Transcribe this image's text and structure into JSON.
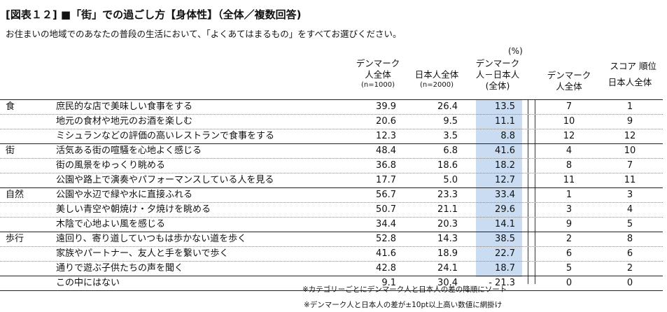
{
  "title": "[図表１２] ■「街」での過ごし方【身体性】（全体／複数回答)",
  "subtitle": "お住まいの地域でのあなたの普段の生活において、「よくあてはまるもの」をすべてお選びください。",
  "unit": "(%)",
  "headers": {
    "col1_line1": "デンマーク",
    "col1_line2": "人全体",
    "col1_n": "(n=1000)",
    "col2_line1": "日本人全体",
    "col2_n": "(n=2000)",
    "col3_line1": "デンマーク",
    "col3_line2": "人－日本人",
    "col3_line3": "(全体)",
    "score_title": "スコア 順位",
    "rank1_line1": "デンマーク",
    "rank1_line2": "人全体",
    "rank2": "日本人全体"
  },
  "rows": [
    {
      "category": "食",
      "item": "庶民的な店で美味しい食事をする",
      "dk": "39.9",
      "jp": "26.4",
      "diff": "13.5",
      "rank_dk": "7",
      "rank_jp": "1"
    },
    {
      "category": "",
      "item": "地元の食材や地元のお酒を楽しむ",
      "dk": "20.6",
      "jp": "9.5",
      "diff": "11.1",
      "rank_dk": "10",
      "rank_jp": "9"
    },
    {
      "category": "",
      "item": "ミシュランなどの評価の高いレストランで食事をする",
      "dk": "12.3",
      "jp": "3.5",
      "diff": "8.8",
      "rank_dk": "12",
      "rank_jp": "12"
    },
    {
      "category": "街",
      "item": "活気ある街の喧騒を心地よく感じる",
      "dk": "48.4",
      "jp": "6.8",
      "diff": "41.6",
      "rank_dk": "4",
      "rank_jp": "10"
    },
    {
      "category": "",
      "item": "街の風景をゆっくり眺める",
      "dk": "36.8",
      "jp": "18.6",
      "diff": "18.2",
      "rank_dk": "8",
      "rank_jp": "7"
    },
    {
      "category": "",
      "item": "公園や路上で演奏やパフォーマンスしている人を見る",
      "dk": "17.7",
      "jp": "5.0",
      "diff": "12.7",
      "rank_dk": "11",
      "rank_jp": "11"
    },
    {
      "category": "自然",
      "item": "公園や水辺で緑や水に直接ふれる",
      "dk": "56.7",
      "jp": "23.3",
      "diff": "33.4",
      "rank_dk": "1",
      "rank_jp": "3"
    },
    {
      "category": "",
      "item": "美しい青空や朝焼け・夕焼けを眺める",
      "dk": "50.7",
      "jp": "21.1",
      "diff": "29.6",
      "rank_dk": "3",
      "rank_jp": "4"
    },
    {
      "category": "",
      "item": "木陰で心地よい風を感じる",
      "dk": "34.4",
      "jp": "20.3",
      "diff": "14.1",
      "rank_dk": "9",
      "rank_jp": "5"
    },
    {
      "category": "歩行",
      "item": "遠回り、寄り道していつもは歩かない道を歩く",
      "dk": "52.8",
      "jp": "14.3",
      "diff": "38.5",
      "rank_dk": "2",
      "rank_jp": "8"
    },
    {
      "category": "",
      "item": "家族やパートナー、友人と手を繋いで歩く",
      "dk": "41.6",
      "jp": "18.9",
      "diff": "22.7",
      "rank_dk": "6",
      "rank_jp": "6"
    },
    {
      "category": "",
      "item": "通りで遊ぶ子供たちの声を聞く",
      "dk": "42.8",
      "jp": "24.1",
      "diff": "18.7",
      "rank_dk": "5",
      "rank_jp": "2"
    },
    {
      "category": "",
      "item": "この中にはない",
      "dk": "9.1",
      "jp": "30.4",
      "diff": "-  21.3",
      "rank_dk": "0",
      "rank_jp": "0"
    }
  ],
  "notes": {
    "note1": "※カテゴリーごとにデンマーク人と日本人の差の降順にソート",
    "note2": "※デンマーク人と日本人の差が±10pt以上高い数値に網掛け"
  }
}
